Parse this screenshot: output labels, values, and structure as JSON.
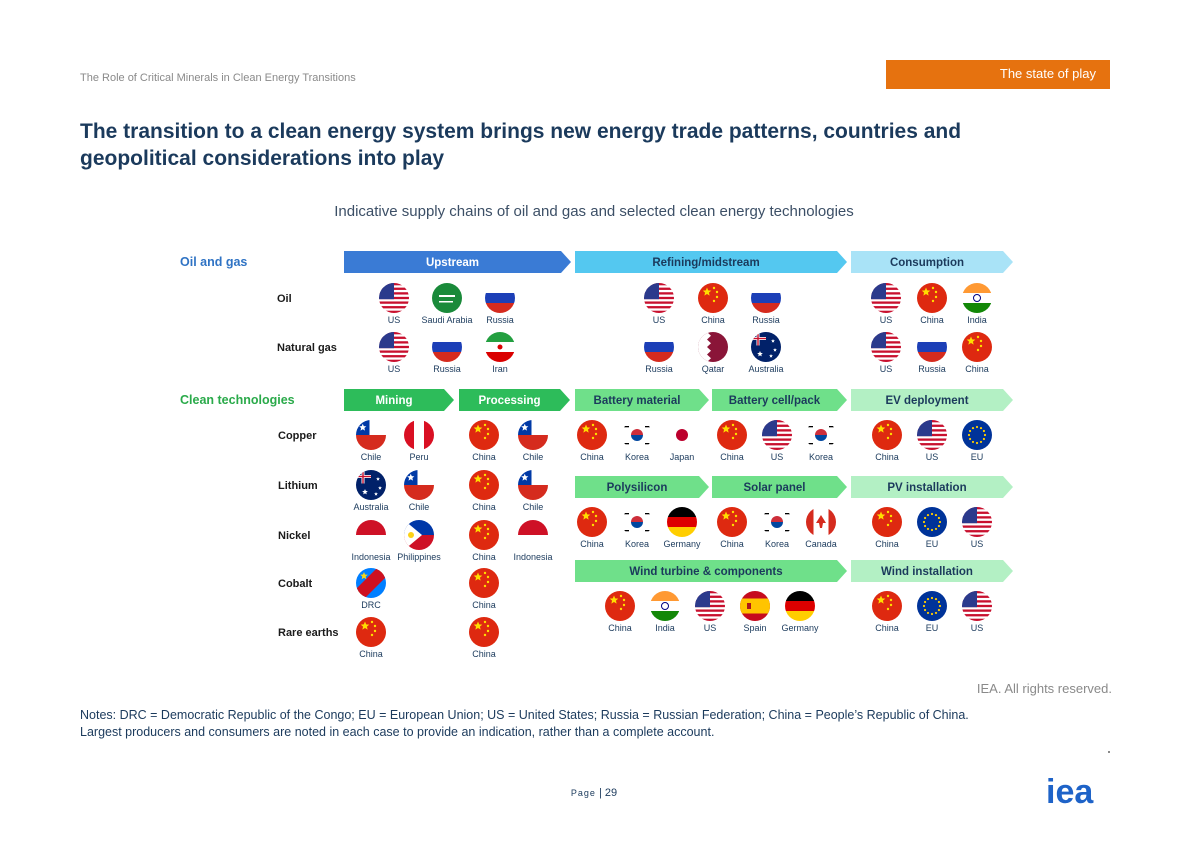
{
  "header": {
    "doc_title": "The Role of Critical Minerals in Clean Energy Transitions",
    "section_badge": "The state of play",
    "headline": "The transition to a clean energy system brings new energy trade patterns, countries and geopolitical considerations into play",
    "subtitle": "Indicative supply chains of oil and gas and selected clean energy technologies"
  },
  "diagram": {
    "colors": {
      "heading_blue": "#2f73c4",
      "heading_green": "#2aaa4a",
      "dark_blue": "#3a7bd5",
      "mid_blue": "#54c8f0",
      "light_blue": "#a9e3f7",
      "dark_green": "#2dbc5a",
      "mid_green": "#6fe08a",
      "light_green": "#b3f0c4"
    },
    "oil_gas": {
      "heading": "Oil and gas",
      "stages": [
        "Upstream",
        "Refining/midstream",
        "Consumption"
      ],
      "rows": [
        {
          "label": "Oil",
          "upstream": [
            {
              "name": "US",
              "flag": "us"
            },
            {
              "name": "Saudi Arabia",
              "flag": "saudi"
            },
            {
              "name": "Russia",
              "flag": "russia"
            }
          ],
          "refining": [
            {
              "name": "US",
              "flag": "us"
            },
            {
              "name": "China",
              "flag": "china"
            },
            {
              "name": "Russia",
              "flag": "russia"
            }
          ],
          "consumption": [
            {
              "name": "US",
              "flag": "us"
            },
            {
              "name": "China",
              "flag": "china"
            },
            {
              "name": "India",
              "flag": "india"
            }
          ]
        },
        {
          "label": "Natural gas",
          "upstream": [
            {
              "name": "US",
              "flag": "us"
            },
            {
              "name": "Russia",
              "flag": "russia"
            },
            {
              "name": "Iran",
              "flag": "iran"
            }
          ],
          "refining": [
            {
              "name": "Russia",
              "flag": "russia"
            },
            {
              "name": "Qatar",
              "flag": "qatar"
            },
            {
              "name": "Australia",
              "flag": "australia"
            }
          ],
          "consumption": [
            {
              "name": "US",
              "flag": "us"
            },
            {
              "name": "Russia",
              "flag": "russia"
            },
            {
              "name": "China",
              "flag": "china"
            }
          ]
        }
      ]
    },
    "clean_tech": {
      "heading": "Clean technologies",
      "mining_stages": [
        "Mining",
        "Processing"
      ],
      "rows": [
        {
          "label": "Copper",
          "mining": [
            {
              "name": "Chile",
              "flag": "chile"
            },
            {
              "name": "Peru",
              "flag": "peru"
            }
          ],
          "processing": [
            {
              "name": "China",
              "flag": "china"
            },
            {
              "name": "Chile",
              "flag": "chile"
            }
          ]
        },
        {
          "label": "Lithium",
          "mining": [
            {
              "name": "Australia",
              "flag": "australia"
            },
            {
              "name": "Chile",
              "flag": "chile"
            }
          ],
          "processing": [
            {
              "name": "China",
              "flag": "china"
            },
            {
              "name": "Chile",
              "flag": "chile"
            }
          ]
        },
        {
          "label": "Nickel",
          "mining": [
            {
              "name": "Indonesia",
              "flag": "indonesia"
            },
            {
              "name": "Philippines",
              "flag": "philippines"
            }
          ],
          "processing": [
            {
              "name": "China",
              "flag": "china"
            },
            {
              "name": "Indonesia",
              "flag": "indonesia"
            }
          ]
        },
        {
          "label": "Cobalt",
          "mining": [
            {
              "name": "DRC",
              "flag": "drc"
            }
          ],
          "processing": [
            {
              "name": "China",
              "flag": "china"
            }
          ]
        },
        {
          "label": "Rare earths",
          "mining": [
            {
              "name": "China",
              "flag": "china"
            }
          ],
          "processing": [
            {
              "name": "China",
              "flag": "china"
            }
          ]
        }
      ],
      "chains": [
        {
          "stages": [
            "Battery material",
            "Battery cell/pack",
            "EV deployment"
          ],
          "groups": [
            [
              {
                "name": "China",
                "flag": "china"
              },
              {
                "name": "Korea",
                "flag": "korea"
              },
              {
                "name": "Japan",
                "flag": "japan"
              }
            ],
            [
              {
                "name": "China",
                "flag": "china"
              },
              {
                "name": "US",
                "flag": "us"
              },
              {
                "name": "Korea",
                "flag": "korea"
              }
            ],
            [
              {
                "name": "China",
                "flag": "china"
              },
              {
                "name": "US",
                "flag": "us"
              },
              {
                "name": "EU",
                "flag": "eu"
              }
            ]
          ]
        },
        {
          "stages": [
            "Polysilicon",
            "Solar panel",
            "PV installation"
          ],
          "groups": [
            [
              {
                "name": "China",
                "flag": "china"
              },
              {
                "name": "Korea",
                "flag": "korea"
              },
              {
                "name": "Germany",
                "flag": "germany"
              }
            ],
            [
              {
                "name": "China",
                "flag": "china"
              },
              {
                "name": "Korea",
                "flag": "korea"
              },
              {
                "name": "Canada",
                "flag": "canada"
              }
            ],
            [
              {
                "name": "China",
                "flag": "china"
              },
              {
                "name": "EU",
                "flag": "eu"
              },
              {
                "name": "US",
                "flag": "us"
              }
            ]
          ]
        },
        {
          "stages": [
            "Wind turbine & components",
            "Wind installation"
          ],
          "groups": [
            [
              {
                "name": "China",
                "flag": "china"
              },
              {
                "name": "India",
                "flag": "india"
              },
              {
                "name": "US",
                "flag": "us"
              },
              {
                "name": "Spain",
                "flag": "spain"
              },
              {
                "name": "Germany",
                "flag": "germany"
              }
            ],
            [
              {
                "name": "China",
                "flag": "china"
              },
              {
                "name": "EU",
                "flag": "eu"
              },
              {
                "name": "US",
                "flag": "us"
              }
            ]
          ]
        }
      ]
    }
  },
  "footer": {
    "credit": "IEA. All rights reserved.",
    "notes_line1": "Notes: DRC = Democratic Republic of the Congo; EU = European Union; US = United States; Russia = Russian Federation; China = People’s Republic of China.",
    "notes_line2": "Largest producers and consumers are noted in each case to provide an indication, rather than a complete account.",
    "page_label": "Page",
    "page_number": "29",
    "logo_text": "iea"
  }
}
